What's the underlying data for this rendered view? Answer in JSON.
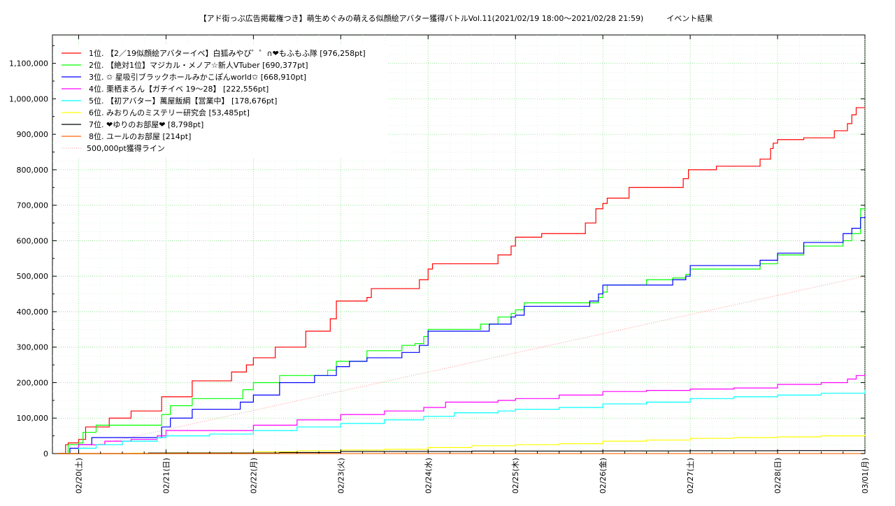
{
  "chart_data": {
    "type": "line",
    "title": "【アド街っぷ広告掲載権つき】萌生めぐみの萌える似顔絵アバター獲得バトルVol.11(2021/02/19 18:00〜2021/02/28 21:59)　　　イベント結果",
    "xlabel": "",
    "ylabel": "",
    "ylim": [
      0,
      1180000
    ],
    "xlim": [
      -0.3,
      9.0
    ],
    "grid": true,
    "legend_position": "top-left",
    "y_ticks": [
      0,
      100000,
      200000,
      300000,
      400000,
      500000,
      600000,
      700000,
      800000,
      900000,
      1000000,
      1100000
    ],
    "y_tick_labels": [
      "0",
      "100,000",
      "200,000",
      "300,000",
      "400,000",
      "500,000",
      "600,000",
      "700,000",
      "800,000",
      "900,000",
      "1,000,000",
      "1,100,000"
    ],
    "x_ticks": [
      0,
      1,
      2,
      3,
      4,
      5,
      6,
      7,
      8,
      9
    ],
    "x_tick_labels": [
      "02/20(土)",
      "02/21(日)",
      "02/22(月)",
      "02/23(火)",
      "02/24(水)",
      "02/25(木)",
      "02/26(金)",
      "02/27(土)",
      "02/28(日)",
      "03/01(月)"
    ],
    "series": [
      {
        "name": "1位. 【2／19似顔絵アバターイベ】白狐みやび゜゜∩❤もふもふ隊 [976,258pt]",
        "color": "#ff0000",
        "style": "step",
        "x": [
          -0.25,
          -0.15,
          -0.12,
          0.0,
          0.08,
          0.35,
          0.6,
          0.8,
          0.95,
          1.3,
          1.75,
          1.92,
          2.0,
          2.25,
          2.38,
          2.6,
          2.88,
          2.95,
          3.3,
          3.35,
          3.8,
          3.9,
          4.0,
          4.05,
          4.3,
          4.8,
          4.95,
          5.0,
          5.3,
          5.8,
          5.92,
          6.0,
          6.05,
          6.3,
          6.8,
          6.92,
          6.98,
          7.3,
          7.8,
          7.92,
          7.95,
          8.0,
          8.3,
          8.65,
          8.8,
          8.85,
          8.9,
          9.0
        ],
        "values": [
          0,
          25000,
          30000,
          40000,
          75000,
          100000,
          120000,
          120000,
          160000,
          205000,
          230000,
          250000,
          270000,
          300000,
          300000,
          345000,
          380000,
          430000,
          440000,
          465000,
          465000,
          490000,
          520000,
          535000,
          535000,
          560000,
          585000,
          610000,
          620000,
          650000,
          690000,
          705000,
          720000,
          750000,
          750000,
          775000,
          800000,
          810000,
          830000,
          860000,
          875000,
          885000,
          890000,
          910000,
          930000,
          955000,
          975000,
          976258
        ]
      },
      {
        "name": "2位. 【絶対1位】マジカル・メノア☆新人VTuber [690,377pt]",
        "color": "#00ff00",
        "style": "step",
        "x": [
          -0.25,
          -0.12,
          0.0,
          0.05,
          0.2,
          0.7,
          0.95,
          1.05,
          1.3,
          1.75,
          1.88,
          2.0,
          2.3,
          2.6,
          2.85,
          2.95,
          3.3,
          3.35,
          3.7,
          3.85,
          3.95,
          4.0,
          4.3,
          4.6,
          4.8,
          4.95,
          5.0,
          5.1,
          5.5,
          5.8,
          5.95,
          6.0,
          6.05,
          6.5,
          6.8,
          6.95,
          7.0,
          7.3,
          7.8,
          8.0,
          8.3,
          8.6,
          8.75,
          8.85,
          8.95,
          9.0
        ],
        "values": [
          0,
          25000,
          30000,
          60000,
          80000,
          80000,
          110000,
          135000,
          155000,
          155000,
          180000,
          200000,
          220000,
          220000,
          235000,
          260000,
          290000,
          290000,
          305000,
          310000,
          330000,
          350000,
          350000,
          365000,
          385000,
          395000,
          405000,
          425000,
          425000,
          425000,
          440000,
          455000,
          475000,
          490000,
          495000,
          505000,
          520000,
          520000,
          535000,
          560000,
          585000,
          585000,
          600000,
          620000,
          690000,
          690377
        ]
      },
      {
        "name": "3位. ✩ 星吸引ブラックホールみかこぽんworld✩ [668,910pt]",
        "color": "#0000ff",
        "style": "step",
        "x": [
          -0.25,
          -0.1,
          0.0,
          0.15,
          0.45,
          0.7,
          0.95,
          1.05,
          1.3,
          1.75,
          1.85,
          2.0,
          2.3,
          2.55,
          2.7,
          2.95,
          3.1,
          3.3,
          3.5,
          3.7,
          3.9,
          4.0,
          4.2,
          4.5,
          4.7,
          4.95,
          5.0,
          5.1,
          5.5,
          5.7,
          5.85,
          5.95,
          6.0,
          6.3,
          6.5,
          6.8,
          6.95,
          7.0,
          7.3,
          7.8,
          8.0,
          8.3,
          8.6,
          8.75,
          8.85,
          8.95,
          9.0
        ],
        "values": [
          0,
          15000,
          25000,
          45000,
          45000,
          45000,
          75000,
          100000,
          125000,
          125000,
          145000,
          165000,
          200000,
          200000,
          220000,
          245000,
          260000,
          270000,
          270000,
          285000,
          305000,
          345000,
          345000,
          345000,
          365000,
          385000,
          390000,
          415000,
          415000,
          415000,
          430000,
          450000,
          475000,
          475000,
          475000,
          490000,
          500000,
          530000,
          530000,
          545000,
          565000,
          595000,
          595000,
          620000,
          635000,
          665000,
          668910
        ]
      },
      {
        "name": "4位. 栗栖まろん【ガチイベ 19〜28】 [222,556pt]",
        "color": "#ff00ff",
        "style": "step",
        "x": [
          -0.25,
          0.0,
          0.3,
          0.6,
          0.9,
          1.0,
          1.5,
          2.0,
          2.5,
          3.0,
          3.5,
          3.95,
          4.2,
          4.8,
          5.0,
          5.5,
          6.0,
          6.5,
          7.0,
          7.5,
          8.0,
          8.5,
          8.8,
          8.9,
          9.0
        ],
        "values": [
          0,
          25000,
          35000,
          40000,
          50000,
          65000,
          65000,
          80000,
          95000,
          110000,
          120000,
          130000,
          145000,
          150000,
          155000,
          165000,
          175000,
          178000,
          182000,
          185000,
          195000,
          200000,
          210000,
          220000,
          222556
        ]
      },
      {
        "name": "5位. 【初アバター】萬屋飯綱【営業中】 [178,676pt]",
        "color": "#00ffff",
        "style": "step",
        "x": [
          -0.25,
          0.0,
          0.2,
          0.5,
          0.9,
          1.0,
          1.5,
          2.0,
          2.5,
          3.0,
          3.5,
          3.95,
          4.3,
          4.8,
          5.0,
          5.5,
          6.0,
          6.5,
          7.0,
          7.5,
          8.0,
          8.5,
          9.0
        ],
        "values": [
          0,
          15000,
          25000,
          35000,
          45000,
          50000,
          55000,
          65000,
          75000,
          85000,
          95000,
          105000,
          115000,
          120000,
          125000,
          130000,
          140000,
          145000,
          155000,
          160000,
          165000,
          170000,
          178676
        ]
      },
      {
        "name": "6位. みおりんのミステリー研究会 [53,485pt]",
        "color": "#ffff00",
        "style": "step",
        "x": [
          -0.25,
          0.6,
          1.0,
          2.0,
          2.5,
          3.0,
          3.5,
          4.0,
          4.5,
          5.0,
          5.5,
          6.0,
          6.5,
          7.0,
          7.5,
          8.0,
          8.5,
          9.0
        ],
        "values": [
          0,
          1000,
          2000,
          5000,
          8000,
          10000,
          12000,
          17000,
          22000,
          25000,
          28000,
          35000,
          38000,
          43000,
          45000,
          47000,
          50000,
          53485
        ]
      },
      {
        "name": "7位. ❤ゆりのお部屋❤ [8,798pt]",
        "color": "#000000",
        "style": "step",
        "x": [
          -0.25,
          0.8,
          2.3,
          3.0,
          4.5,
          6.0,
          7.0,
          8.0,
          9.0
        ],
        "values": [
          0,
          1500,
          3000,
          6000,
          7000,
          7500,
          8000,
          8500,
          8798
        ]
      },
      {
        "name": "8位. ユールのお部屋 [214pt]",
        "color": "#ff6600",
        "style": "step",
        "x": [
          -0.25,
          2.0,
          9.0
        ],
        "values": [
          0,
          100,
          214
        ]
      },
      {
        "name": "500,000pt獲得ライン",
        "color": "#ff9999",
        "style": "dotted",
        "x": [
          -0.25,
          9.0
        ],
        "values": [
          0,
          500000
        ]
      }
    ]
  }
}
